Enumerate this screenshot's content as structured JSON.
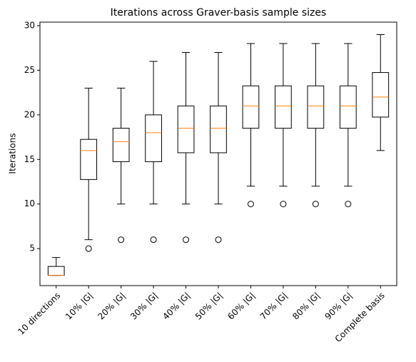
{
  "chart_data": {
    "type": "box",
    "title": "Iterations across Graver-basis sample sizes",
    "y_label": "Iterations",
    "categories": [
      "10 directions",
      "10% |G|",
      "20% |G|",
      "30% |G|",
      "40% |G|",
      "50% |G|",
      "60% |G|",
      "70% |G|",
      "80% |G|",
      "90% |G|",
      "Complete basis"
    ],
    "boxes": [
      {
        "whislo": 2,
        "q1": 2,
        "med": 2,
        "q3": 3,
        "whishi": 4,
        "fliers": []
      },
      {
        "whislo": 6,
        "q1": 12.75,
        "med": 16,
        "q3": 17.25,
        "whishi": 23,
        "fliers": [
          5
        ]
      },
      {
        "whislo": 10,
        "q1": 14.75,
        "med": 17,
        "q3": 18.5,
        "whishi": 23,
        "fliers": [
          6
        ]
      },
      {
        "whislo": 10,
        "q1": 14.75,
        "med": 18,
        "q3": 20,
        "whishi": 26,
        "fliers": [
          6
        ]
      },
      {
        "whislo": 10,
        "q1": 15.75,
        "med": 18.5,
        "q3": 21,
        "whishi": 27,
        "fliers": [
          6
        ]
      },
      {
        "whislo": 10,
        "q1": 15.75,
        "med": 18.5,
        "q3": 21,
        "whishi": 27,
        "fliers": [
          6
        ]
      },
      {
        "whislo": 12,
        "q1": 18.5,
        "med": 21,
        "q3": 23.25,
        "whishi": 28,
        "fliers": [
          10
        ]
      },
      {
        "whislo": 12,
        "q1": 18.5,
        "med": 21,
        "q3": 23.25,
        "whishi": 28,
        "fliers": [
          10
        ]
      },
      {
        "whislo": 12,
        "q1": 18.5,
        "med": 21,
        "q3": 23.25,
        "whishi": 28,
        "fliers": [
          10
        ]
      },
      {
        "whislo": 12,
        "q1": 18.5,
        "med": 21,
        "q3": 23.25,
        "whishi": 28,
        "fliers": [
          10
        ]
      },
      {
        "whislo": 16,
        "q1": 19.75,
        "med": 22,
        "q3": 24.75,
        "whishi": 29,
        "fliers": []
      }
    ],
    "box_color": "#000000",
    "median_color": "#ff7f0e",
    "ylim": [
      0.85,
      30.4
    ],
    "yticks": [
      5,
      10,
      15,
      20,
      25,
      30
    ],
    "grid": false
  }
}
